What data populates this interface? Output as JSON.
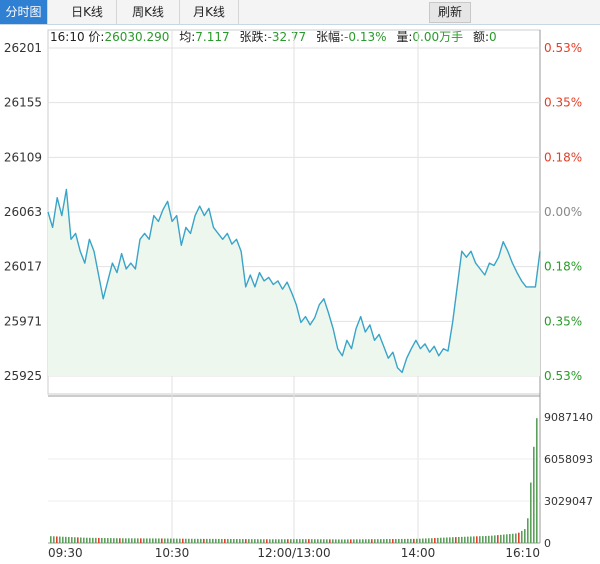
{
  "tabs": [
    {
      "label": "分时图",
      "active": true
    },
    {
      "label": "日K线",
      "active": false
    },
    {
      "label": "周K线",
      "active": false
    },
    {
      "label": "月K线",
      "active": false
    }
  ],
  "refresh_label": "刷新",
  "info": {
    "time": "16:10",
    "price_label": "价:",
    "price": "26030.290",
    "avg_label": "均:",
    "avg": "7.117",
    "change_label": "张跌:",
    "change": "-32.77",
    "pct_label": "张幅:",
    "pct": "-0.13%",
    "vol_label": "量:",
    "vol": "0.00万手",
    "amt_label": "额:",
    "amt": "0"
  },
  "colors": {
    "up": "#e0402a",
    "down": "#2a9a2a",
    "neutral": "#888888",
    "line": "#3aa4c8",
    "fill": "#eef7ee",
    "volume_bar": "#5aa05a"
  },
  "chart_data": {
    "type": "line",
    "price_axis": {
      "ticks": [
        "26201",
        "26155",
        "26109",
        "26063",
        "26017",
        "25971",
        "25925"
      ],
      "range": [
        25925,
        26201
      ],
      "baseline": 26063
    },
    "percent_axis": {
      "ticks": [
        "0.53%",
        "0.35%",
        "0.18%",
        "0.00%",
        "0.18%",
        "0.35%",
        "0.53%"
      ],
      "colors": [
        "up",
        "up",
        "up",
        "neutral",
        "down",
        "down",
        "down"
      ]
    },
    "time_ticks": [
      "09:30",
      "10:30",
      "12:00/13:00",
      "14:00",
      "16:10"
    ],
    "volume_ticks": [
      "9087140",
      "6058093",
      "3029047",
      "0"
    ],
    "volume_range": [
      0,
      9087140
    ],
    "price_series": [
      {
        "t": 0,
        "v": 26063
      },
      {
        "t": 1,
        "v": 26050
      },
      {
        "t": 2,
        "v": 26075
      },
      {
        "t": 3,
        "v": 26060
      },
      {
        "t": 4,
        "v": 26082
      },
      {
        "t": 5,
        "v": 26040
      },
      {
        "t": 6,
        "v": 26045
      },
      {
        "t": 7,
        "v": 26030
      },
      {
        "t": 8,
        "v": 26020
      },
      {
        "t": 9,
        "v": 26040
      },
      {
        "t": 10,
        "v": 26030
      },
      {
        "t": 11,
        "v": 26010
      },
      {
        "t": 12,
        "v": 25990
      },
      {
        "t": 13,
        "v": 26005
      },
      {
        "t": 14,
        "v": 26020
      },
      {
        "t": 15,
        "v": 26012
      },
      {
        "t": 16,
        "v": 26028
      },
      {
        "t": 17,
        "v": 26015
      },
      {
        "t": 18,
        "v": 26020
      },
      {
        "t": 19,
        "v": 26015
      },
      {
        "t": 20,
        "v": 26040
      },
      {
        "t": 21,
        "v": 26045
      },
      {
        "t": 22,
        "v": 26040
      },
      {
        "t": 23,
        "v": 26060
      },
      {
        "t": 24,
        "v": 26055
      },
      {
        "t": 25,
        "v": 26065
      },
      {
        "t": 26,
        "v": 26072
      },
      {
        "t": 27,
        "v": 26055
      },
      {
        "t": 28,
        "v": 26060
      },
      {
        "t": 29,
        "v": 26035
      },
      {
        "t": 30,
        "v": 26050
      },
      {
        "t": 31,
        "v": 26045
      },
      {
        "t": 32,
        "v": 26060
      },
      {
        "t": 33,
        "v": 26068
      },
      {
        "t": 34,
        "v": 26060
      },
      {
        "t": 35,
        "v": 26066
      },
      {
        "t": 36,
        "v": 26050
      },
      {
        "t": 37,
        "v": 26045
      },
      {
        "t": 38,
        "v": 26040
      },
      {
        "t": 39,
        "v": 26045
      },
      {
        "t": 40,
        "v": 26036
      },
      {
        "t": 41,
        "v": 26040
      },
      {
        "t": 42,
        "v": 26030
      },
      {
        "t": 43,
        "v": 26000
      },
      {
        "t": 44,
        "v": 26010
      },
      {
        "t": 45,
        "v": 26000
      },
      {
        "t": 46,
        "v": 26012
      },
      {
        "t": 47,
        "v": 26005
      },
      {
        "t": 48,
        "v": 26008
      },
      {
        "t": 49,
        "v": 26002
      },
      {
        "t": 50,
        "v": 26005
      },
      {
        "t": 51,
        "v": 25998
      },
      {
        "t": 52,
        "v": 26004
      },
      {
        "t": 53,
        "v": 25995
      },
      {
        "t": 54,
        "v": 25985
      },
      {
        "t": 55,
        "v": 25970
      },
      {
        "t": 56,
        "v": 25975
      },
      {
        "t": 57,
        "v": 25968
      },
      {
        "t": 58,
        "v": 25974
      },
      {
        "t": 59,
        "v": 25985
      },
      {
        "t": 60,
        "v": 25990
      },
      {
        "t": 61,
        "v": 25978
      },
      {
        "t": 62,
        "v": 25965
      },
      {
        "t": 63,
        "v": 25948
      },
      {
        "t": 64,
        "v": 25942
      },
      {
        "t": 65,
        "v": 25955
      },
      {
        "t": 66,
        "v": 25948
      },
      {
        "t": 67,
        "v": 25965
      },
      {
        "t": 68,
        "v": 25975
      },
      {
        "t": 69,
        "v": 25962
      },
      {
        "t": 70,
        "v": 25968
      },
      {
        "t": 71,
        "v": 25955
      },
      {
        "t": 72,
        "v": 25960
      },
      {
        "t": 73,
        "v": 25950
      },
      {
        "t": 74,
        "v": 25940
      },
      {
        "t": 75,
        "v": 25945
      },
      {
        "t": 76,
        "v": 25932
      },
      {
        "t": 77,
        "v": 25928
      },
      {
        "t": 78,
        "v": 25940
      },
      {
        "t": 79,
        "v": 25948
      },
      {
        "t": 80,
        "v": 25955
      },
      {
        "t": 81,
        "v": 25948
      },
      {
        "t": 82,
        "v": 25952
      },
      {
        "t": 83,
        "v": 25945
      },
      {
        "t": 84,
        "v": 25950
      },
      {
        "t": 85,
        "v": 25942
      },
      {
        "t": 86,
        "v": 25948
      },
      {
        "t": 87,
        "v": 25946
      },
      {
        "t": 88,
        "v": 25970
      },
      {
        "t": 89,
        "v": 26000
      },
      {
        "t": 90,
        "v": 26030
      },
      {
        "t": 91,
        "v": 26025
      },
      {
        "t": 92,
        "v": 26030
      },
      {
        "t": 93,
        "v": 26020
      },
      {
        "t": 94,
        "v": 26015
      },
      {
        "t": 95,
        "v": 26010
      },
      {
        "t": 96,
        "v": 26020
      },
      {
        "t": 97,
        "v": 26018
      },
      {
        "t": 98,
        "v": 26025
      },
      {
        "t": 99,
        "v": 26038
      },
      {
        "t": 100,
        "v": 26030
      },
      {
        "t": 101,
        "v": 26020
      },
      {
        "t": 102,
        "v": 26012
      },
      {
        "t": 103,
        "v": 26005
      },
      {
        "t": 104,
        "v": 26000
      },
      {
        "t": 105,
        "v": 26000
      },
      {
        "t": 106,
        "v": 26000
      },
      {
        "t": 107,
        "v": 26030
      }
    ],
    "volume_series": [
      {
        "t": 0,
        "v": 500000
      },
      {
        "t": 8,
        "v": 380000
      },
      {
        "t": 16,
        "v": 340000
      },
      {
        "t": 24,
        "v": 330000
      },
      {
        "t": 32,
        "v": 300000
      },
      {
        "t": 40,
        "v": 290000
      },
      {
        "t": 48,
        "v": 270000
      },
      {
        "t": 56,
        "v": 280000
      },
      {
        "t": 64,
        "v": 260000
      },
      {
        "t": 72,
        "v": 280000
      },
      {
        "t": 80,
        "v": 300000
      },
      {
        "t": 88,
        "v": 420000
      },
      {
        "t": 96,
        "v": 520000
      },
      {
        "t": 102,
        "v": 700000
      },
      {
        "t": 104,
        "v": 1100000
      },
      {
        "t": 106,
        "v": 9000000
      }
    ]
  }
}
